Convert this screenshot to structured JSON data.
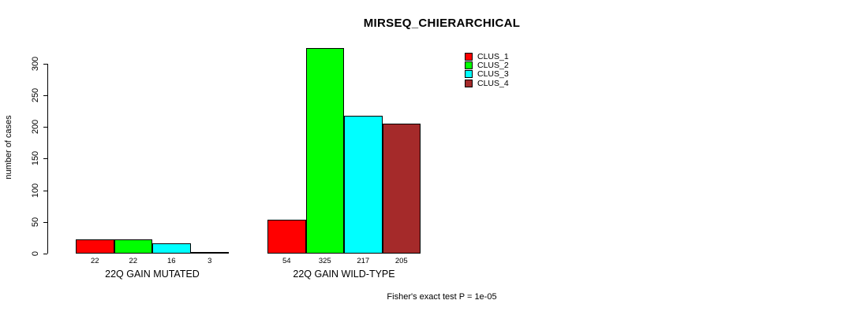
{
  "chart_data": {
    "type": "bar",
    "title": "MIRSEQ_CHIERARCHICAL",
    "ylabel": "number of cases",
    "xlabel": "",
    "categories": [
      "22Q GAIN MUTATED",
      "22Q GAIN WILD-TYPE"
    ],
    "series": [
      {
        "name": "CLUS_1",
        "color": "#ff0000",
        "values": [
          22,
          54
        ]
      },
      {
        "name": "CLUS_2",
        "color": "#00ff00",
        "values": [
          22,
          325
        ]
      },
      {
        "name": "CLUS_3",
        "color": "#00ffff",
        "values": [
          16,
          217
        ]
      },
      {
        "name": "CLUS_4",
        "color": "#a52a2a",
        "values": [
          3,
          205
        ]
      }
    ],
    "bar_value_labels": [
      [
        "22",
        "22",
        "16",
        "3"
      ],
      [
        "54",
        "325",
        "217",
        "205"
      ]
    ],
    "yticks": [
      0,
      50,
      100,
      150,
      200,
      250,
      300
    ],
    "ylim": [
      0,
      300
    ],
    "grid": false,
    "legend_position": "top-right",
    "legend_entries": [
      "CLUS_1",
      "CLUS_2",
      "CLUS_3",
      "CLUS_4"
    ],
    "annotation": "Fisher's exact test P = 1e-05",
    "background_color": "#ffffff",
    "axis_color": "#000000"
  }
}
